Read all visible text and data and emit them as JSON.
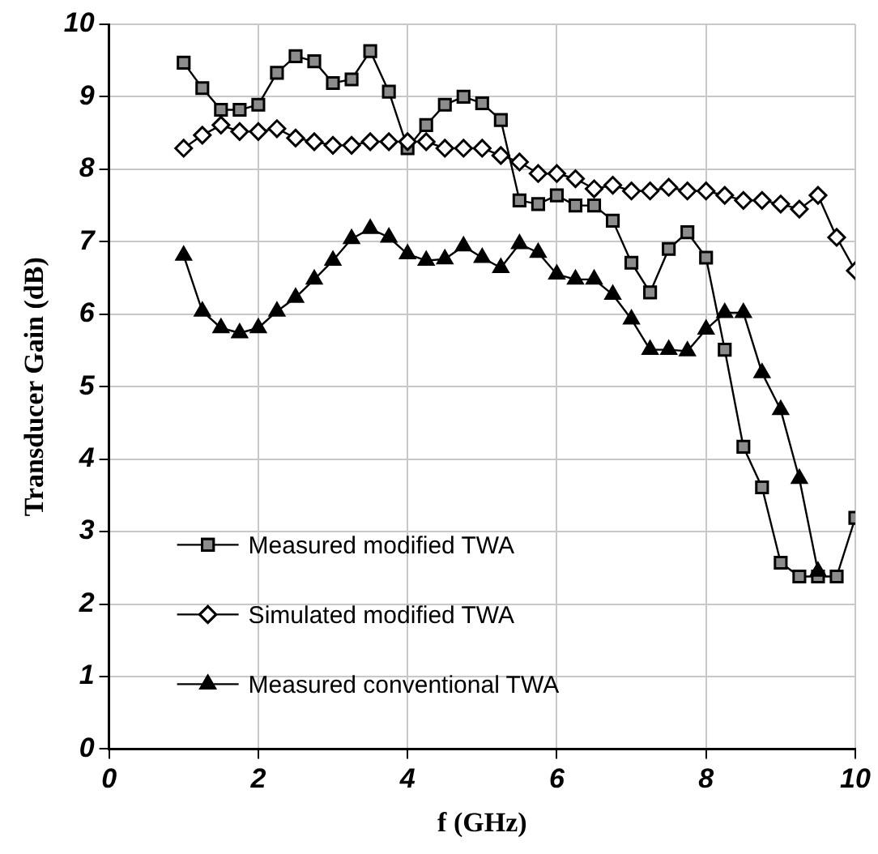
{
  "chart_data": {
    "type": "line",
    "xlabel": "f (GHz)",
    "ylabel": "Transducer Gain (dB)",
    "x": [
      1,
      1.25,
      1.5,
      1.75,
      2,
      2.25,
      2.5,
      2.75,
      3,
      3.25,
      3.5,
      3.75,
      4,
      4.25,
      4.5,
      4.75,
      5,
      5.25,
      5.5,
      5.75,
      6,
      6.25,
      6.5,
      6.75,
      7,
      7.25,
      7.5,
      7.75,
      8,
      8.25,
      8.5,
      8.75,
      9,
      9.25,
      9.5,
      9.75,
      10
    ],
    "xlim": [
      0,
      10
    ],
    "xticks": [
      0,
      2,
      4,
      6,
      8,
      10
    ],
    "ylim": [
      0,
      10
    ],
    "yticks": [
      0,
      1,
      2,
      3,
      4,
      5,
      6,
      7,
      8,
      9,
      10
    ],
    "grid": true,
    "legend": "bottom left",
    "line_style": "solid",
    "series": [
      {
        "name": "Measured modified TWA",
        "color": "#8c8c8c",
        "marker": "square",
        "values": [
          9.47,
          9.12,
          8.82,
          8.82,
          8.89,
          9.33,
          9.56,
          9.49,
          9.19,
          9.24,
          9.63,
          9.07,
          8.29,
          8.61,
          8.89,
          9.0,
          8.91,
          8.68,
          7.57,
          7.52,
          7.64,
          7.5,
          7.5,
          7.29,
          6.71,
          6.3,
          6.9,
          7.13,
          6.78,
          5.51,
          4.17,
          3.61,
          2.57,
          2.38,
          2.38,
          2.38,
          3.19
        ]
      },
      {
        "name": "Simulated modified TWA",
        "color": "#ffffff",
        "marker": "diamond",
        "values": [
          8.29,
          8.47,
          8.61,
          8.52,
          8.52,
          8.56,
          8.43,
          8.38,
          8.33,
          8.33,
          8.38,
          8.38,
          8.38,
          8.38,
          8.29,
          8.29,
          8.29,
          8.19,
          8.1,
          7.94,
          7.94,
          7.87,
          7.73,
          7.78,
          7.7,
          7.7,
          7.75,
          7.7,
          7.7,
          7.64,
          7.57,
          7.57,
          7.52,
          7.45,
          7.64,
          7.06,
          6.6
        ]
      },
      {
        "name": "Measured conventional TWA",
        "color": "#000000",
        "marker": "triangle",
        "values": [
          6.81,
          6.04,
          5.81,
          5.74,
          5.81,
          6.04,
          6.23,
          6.48,
          6.74,
          7.04,
          7.18,
          7.06,
          6.83,
          6.74,
          6.76,
          6.94,
          6.78,
          6.64,
          6.97,
          6.85,
          6.55,
          6.48,
          6.48,
          6.27,
          5.93,
          5.51,
          5.51,
          5.49,
          5.79,
          6.02,
          6.02,
          5.19,
          4.68,
          3.73,
          2.45,
          null,
          null
        ]
      }
    ]
  }
}
